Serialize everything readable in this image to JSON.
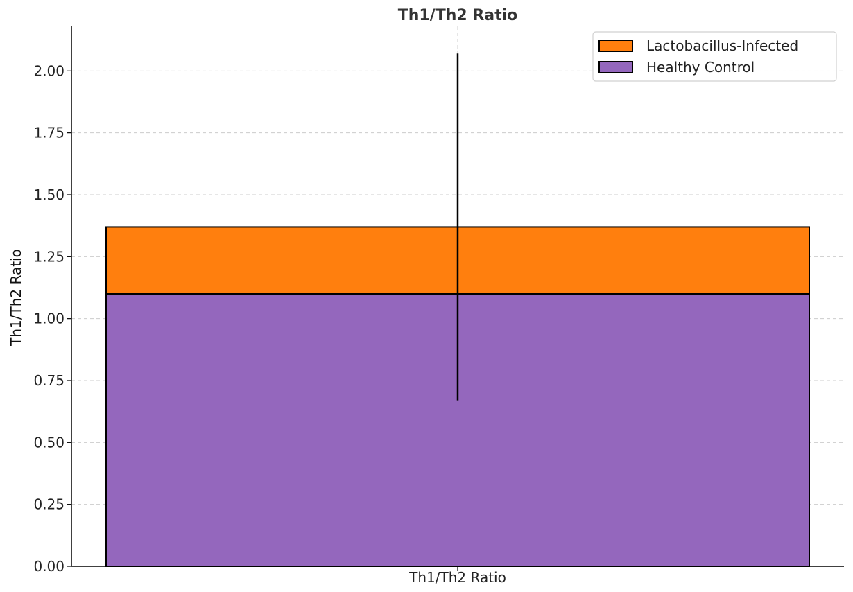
{
  "chart_data": {
    "type": "bar",
    "stacked": true,
    "title": "Th1/Th2 Ratio",
    "xlabel": "",
    "ylabel": "Th1/Th2 Ratio",
    "categories": [
      "Th1/Th2 Ratio"
    ],
    "ylim": [
      0,
      2.18
    ],
    "yticks": [
      "0.00",
      "0.25",
      "0.50",
      "0.75",
      "1.00",
      "1.25",
      "1.50",
      "1.75",
      "2.00"
    ],
    "grid": true,
    "legend_position": "top-right",
    "series": [
      {
        "name": "Healthy Control",
        "values": [
          1.1
        ],
        "color": "#9467bd"
      },
      {
        "name": "Lactobacillus-Infected",
        "values": [
          0.27
        ],
        "color": "#ff7f0e"
      }
    ],
    "error_bar": {
      "center": 1.37,
      "lower": 0.67,
      "upper": 2.07
    },
    "legend_order": [
      "Lactobacillus-Infected",
      "Healthy Control"
    ]
  }
}
